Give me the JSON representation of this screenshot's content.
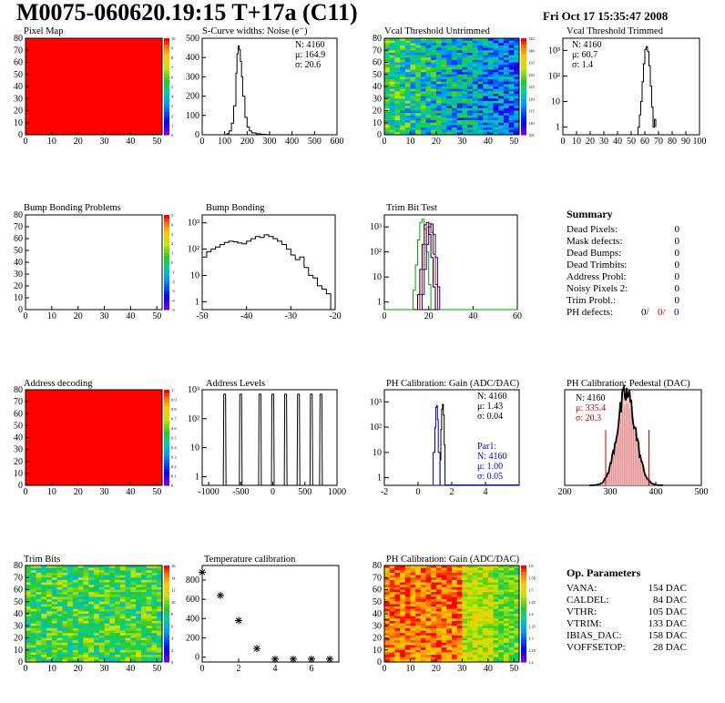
{
  "header": {
    "title": "M0075-060620.19:15 T+17a (C11)",
    "date": "Fri Oct 17 15:35:47 2008"
  },
  "colors": {
    "black": "#000000",
    "red": "#cc0000",
    "blue": "#0000cc",
    "green": "#00aa00",
    "map_red": "#ff0000",
    "pink": "#e06060"
  },
  "chart_data": [
    {
      "id": "pixel-map",
      "type": "heatmap",
      "title": "Pixel Map",
      "xlim": [
        0,
        52
      ],
      "ylim": [
        0,
        80
      ],
      "xticks": [
        0,
        10,
        20,
        30,
        40,
        50
      ],
      "yticks": [
        0,
        10,
        20,
        30,
        40,
        50,
        60,
        70,
        80
      ],
      "fill": "uniform-red",
      "zlim": [
        0,
        10
      ],
      "colorbar_labels": [
        "10",
        "9",
        "8",
        "7",
        "6",
        "5",
        "4",
        "3",
        "2",
        "1",
        "0"
      ]
    },
    {
      "id": "s-curve-noise",
      "type": "line",
      "title": "S-Curve widths: Noise (e⁻)",
      "xlim": [
        0,
        600
      ],
      "ylim": [
        0,
        500
      ],
      "xticks": [
        0,
        100,
        200,
        300,
        400,
        500,
        600
      ],
      "yticks": [
        0,
        100,
        200,
        300,
        400,
        500
      ],
      "stats": [
        "N: 4160",
        "μ: 164.9",
        "σ: 20.6"
      ],
      "x": [
        100,
        110,
        120,
        130,
        140,
        150,
        155,
        160,
        165,
        170,
        175,
        180,
        190,
        200,
        210,
        220,
        240,
        260,
        280,
        300
      ],
      "y": [
        0,
        5,
        20,
        60,
        150,
        320,
        420,
        460,
        440,
        380,
        300,
        200,
        90,
        40,
        20,
        10,
        5,
        3,
        1,
        0
      ]
    },
    {
      "id": "vcal-untrimmed",
      "type": "heatmap",
      "title": "Vcal Threshold Untrimmed",
      "xlim": [
        0,
        52
      ],
      "ylim": [
        0,
        80
      ],
      "xticks": [
        0,
        10,
        20,
        30,
        40,
        50
      ],
      "yticks": [
        0,
        10,
        20,
        30,
        40,
        50,
        60,
        70,
        80
      ],
      "fill": "noise-green-blue",
      "zlim": [
        105,
        145
      ],
      "colorbar_labels": [
        "145",
        "140",
        "135",
        "130",
        "125",
        "120",
        "115",
        "110",
        "105"
      ]
    },
    {
      "id": "vcal-trimmed",
      "type": "line",
      "title": "Vcal Threshold Trimmed",
      "log_y": true,
      "xlim": [
        0,
        100
      ],
      "ylim": [
        0.5,
        3000
      ],
      "xticks": [
        0,
        10,
        20,
        30,
        40,
        50,
        60,
        70,
        80,
        90,
        100
      ],
      "ytick_labels": [
        "1",
        "10",
        "10²",
        "10³"
      ],
      "stats": [
        "N: 4160",
        "μ: 60.7",
        "σ:  1.4"
      ],
      "x": [
        54,
        55,
        56,
        57,
        58,
        59,
        60,
        61,
        62,
        63,
        64,
        65,
        66,
        67,
        68
      ],
      "y": [
        0.5,
        1,
        3,
        10,
        60,
        300,
        1100,
        1400,
        900,
        250,
        40,
        6,
        1,
        2,
        1
      ]
    },
    {
      "id": "bump-bonding-problems",
      "type": "heatmap",
      "title": "Bump Bonding Problems",
      "xlim": [
        0,
        52
      ],
      "ylim": [
        0,
        80
      ],
      "xticks": [
        0,
        10,
        20,
        30,
        40,
        50
      ],
      "yticks": [
        0,
        10,
        20,
        30,
        40,
        50,
        60,
        70,
        80
      ],
      "fill": "empty",
      "zlim": [
        -5,
        5
      ],
      "colorbar_labels": [
        "5",
        "4",
        "3",
        "2",
        "1",
        "0",
        "-1",
        "-2",
        "-3",
        "-4",
        "-5"
      ]
    },
    {
      "id": "bump-bonding",
      "type": "line",
      "title": "Bump Bonding",
      "log_y": true,
      "xlim": [
        -50,
        -20
      ],
      "ylim": [
        0.5,
        2000
      ],
      "xticks": [
        -50,
        -40,
        -30,
        -20
      ],
      "ytick_labels": [
        "1",
        "10",
        "10²",
        "10³"
      ],
      "x": [
        -50,
        -49,
        -48,
        -47,
        -46,
        -45,
        -44,
        -43,
        -42,
        -41,
        -40,
        -39,
        -38,
        -37,
        -36,
        -35,
        -34,
        -33,
        -32,
        -31,
        -30,
        -29,
        -28,
        -27,
        -26,
        -25,
        -24,
        -23,
        -22,
        -21,
        -20
      ],
      "y": [
        50,
        80,
        100,
        120,
        150,
        180,
        200,
        190,
        170,
        160,
        200,
        250,
        300,
        280,
        350,
        300,
        250,
        200,
        150,
        100,
        60,
        40,
        50,
        20,
        10,
        8,
        4,
        3,
        2,
        0.5,
        0.5
      ]
    },
    {
      "id": "trim-bit-test",
      "type": "line",
      "title": "Trim Bit Test",
      "log_y": true,
      "xlim": [
        0,
        60
      ],
      "ylim": [
        0.5,
        3000
      ],
      "xticks": [
        0,
        20,
        40,
        60
      ],
      "ytick_labels": [
        "1",
        "10",
        "10²",
        "10³"
      ],
      "series": [
        {
          "color": "#00aa00",
          "x": [
            12,
            13,
            14,
            15,
            16,
            17,
            18,
            19,
            20,
            21
          ],
          "y": [
            0.5,
            3,
            30,
            300,
            1500,
            2000,
            800,
            100,
            5,
            0.5
          ]
        },
        {
          "color": "#000000",
          "x": [
            14,
            15,
            16,
            17,
            18,
            19,
            20,
            21,
            22,
            23
          ],
          "y": [
            0.5,
            2,
            20,
            200,
            1200,
            1500,
            500,
            60,
            4,
            0.5
          ]
        },
        {
          "color": "#cc0000",
          "x": [
            15,
            16,
            17,
            18,
            19,
            20,
            21,
            22,
            23,
            24
          ],
          "y": [
            0.5,
            2,
            20,
            200,
            1000,
            1400,
            600,
            80,
            5,
            0.5
          ]
        },
        {
          "color": "#0000cc",
          "x": [
            16,
            17,
            18,
            19,
            20,
            21,
            22,
            23,
            24,
            25
          ],
          "y": [
            0.5,
            2,
            20,
            200,
            1000,
            1300,
            500,
            60,
            4,
            0.5
          ]
        }
      ]
    },
    {
      "id": "address-decoding",
      "type": "heatmap",
      "title": "Address decoding",
      "xlim": [
        0,
        52
      ],
      "ylim": [
        0,
        80
      ],
      "xticks": [
        0,
        10,
        20,
        30,
        40,
        50
      ],
      "yticks": [
        0,
        10,
        20,
        30,
        40,
        50,
        60,
        70,
        80
      ],
      "fill": "uniform-red",
      "zlim": [
        0,
        1
      ],
      "colorbar_labels": [
        "1",
        "0.9",
        "0.8",
        "0.7",
        "0.6",
        "0.5",
        "0.4",
        "0.3",
        "0.2",
        "0.1",
        "0"
      ]
    },
    {
      "id": "address-levels",
      "type": "line",
      "title": "Address Levels",
      "log_y": true,
      "xlim": [
        -1100,
        1000
      ],
      "ylim": [
        0.5,
        1000
      ],
      "xticks": [
        -1000,
        -500,
        0,
        500,
        1000
      ],
      "ytick_labels": [
        "1",
        "10",
        "10²",
        "10³"
      ],
      "peaks": [
        -750,
        -500,
        -200,
        0,
        200,
        400,
        600,
        750
      ],
      "peak_height": 700
    },
    {
      "id": "ph-gain",
      "type": "line",
      "title": "PH Calibration: Gain (ADC/DAC)",
      "log_y": true,
      "xlim": [
        -2,
        6
      ],
      "ylim": [
        0.5,
        3000
      ],
      "xticks": [
        -2,
        0,
        2,
        4
      ],
      "ytick_labels": [
        "1",
        "10",
        "10²",
        "10³"
      ],
      "stats": [
        "N: 4160",
        "μ: 1.43",
        "σ: 0.04"
      ],
      "par_stats": [
        "Par1:",
        "N: 4160",
        "μ: 1.00",
        "σ: 0.05"
      ],
      "series": [
        {
          "color": "#000000",
          "x": [
            1.25,
            1.3,
            1.35,
            1.4,
            1.45,
            1.5,
            1.55,
            1.6
          ],
          "y": [
            0.5,
            5,
            80,
            500,
            800,
            300,
            20,
            0.5
          ]
        },
        {
          "color": "#0000cc",
          "x": [
            0.8,
            0.9,
            1.0,
            1.05,
            1.1,
            1.15,
            1.2,
            1.3
          ],
          "y": [
            0.5,
            10,
            100,
            600,
            700,
            200,
            10,
            0.5
          ]
        }
      ]
    },
    {
      "id": "ph-pedestal",
      "type": "line",
      "title": "PH Calibration: Pedestal (DAC)",
      "xlim": [
        200,
        500
      ],
      "ylim": [
        0,
        100
      ],
      "xticks": [
        200,
        300,
        400,
        500
      ],
      "stats": [
        "N: 4160",
        "μ: 335.4",
        "σ: 20.3"
      ],
      "markers": [
        290,
        385
      ],
      "mean": 335.4,
      "sigma": 20.3,
      "peak": 95
    },
    {
      "id": "trim-bits",
      "type": "heatmap",
      "title": "Trim Bits",
      "xlim": [
        0,
        52
      ],
      "ylim": [
        0,
        80
      ],
      "xticks": [
        0,
        10,
        20,
        30,
        40,
        50
      ],
      "yticks": [
        0,
        10,
        20,
        30,
        40,
        50,
        60,
        70,
        80
      ],
      "fill": "noise-green-yellow",
      "zlim": [
        0,
        16
      ],
      "colorbar_labels": [
        "16",
        "14",
        "12",
        "10",
        "8",
        "6",
        "4",
        "2",
        "0"
      ]
    },
    {
      "id": "temperature-calibration",
      "type": "scatter",
      "title": "Temperature calibration",
      "xlim": [
        0,
        7.5
      ],
      "ylim": [
        -50,
        950
      ],
      "xticks": [
        0,
        2,
        4,
        6
      ],
      "yticks": [
        0,
        200,
        400,
        600,
        800
      ],
      "x": [
        0,
        1,
        2,
        3,
        4,
        5,
        6,
        7
      ],
      "y": [
        880,
        640,
        380,
        90,
        -20,
        -20,
        -20,
        -20
      ]
    },
    {
      "id": "ph-gain-map",
      "type": "heatmap",
      "title": "PH Calibration: Gain (ADC/DAC)",
      "xlim": [
        0,
        52
      ],
      "ylim": [
        0,
        80
      ],
      "xticks": [
        0,
        10,
        20,
        30,
        40,
        50
      ],
      "yticks": [
        0,
        10,
        20,
        30,
        40,
        50,
        60,
        70,
        80
      ],
      "fill": "noise-red-yellow",
      "zlim": [
        1.2,
        1.6
      ],
      "colorbar_labels": [
        "1.6",
        "1.55",
        "1.5",
        "1.45",
        "1.4",
        "1.35",
        "1.3",
        "1.25",
        "1.2"
      ]
    }
  ],
  "summary": {
    "title": "Summary",
    "rows": [
      {
        "label": "Dead Pixels:",
        "value": "0"
      },
      {
        "label": "Mask defects:",
        "value": "0"
      },
      {
        "label": "Dead Bumps:",
        "value": "0"
      },
      {
        "label": "Dead Trimbits:",
        "value": "0"
      },
      {
        "label": "Address Probl:",
        "value": "0"
      },
      {
        "label": "Noisy Pixels 2:",
        "value": "0"
      },
      {
        "label": "Trim Probl.:",
        "value": "0"
      }
    ],
    "ph_defects": {
      "label": "PH defects:",
      "v1": "0/",
      "v2": "0/",
      "v3": "0"
    }
  },
  "op_params": {
    "title": "Op. Parameters",
    "rows": [
      {
        "label": "VANA:",
        "value": "154 DAC"
      },
      {
        "label": "CALDEL:",
        "value": "84 DAC"
      },
      {
        "label": "VTHR:",
        "value": "105 DAC"
      },
      {
        "label": "VTRIM:",
        "value": "133 DAC"
      },
      {
        "label": "IBIAS_DAC:",
        "value": "158 DAC"
      },
      {
        "label": "VOFFSETOP:",
        "value": "28 DAC"
      }
    ]
  }
}
